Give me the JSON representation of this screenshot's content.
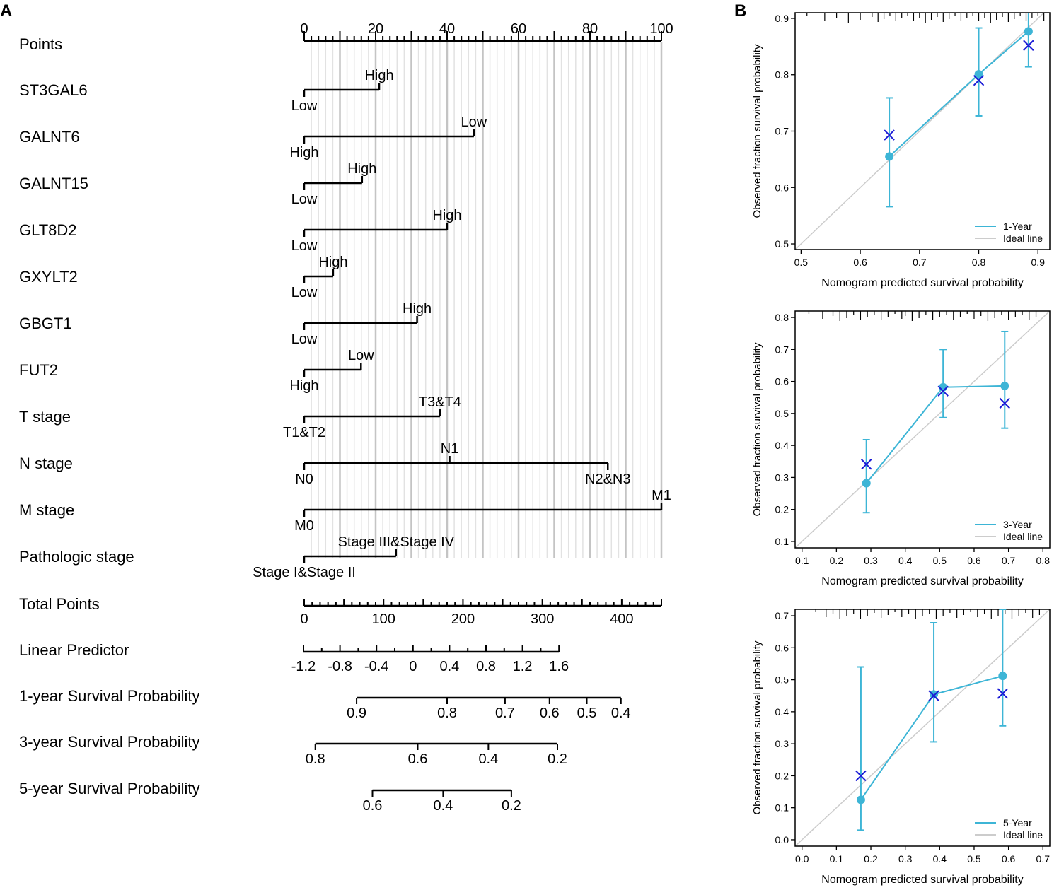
{
  "colors": {
    "axis": "#000000",
    "grid_major": "#c4c4c4",
    "grid_minor": "#e2e2e2",
    "series": "#3db5d6",
    "cross": "#1b1bd6",
    "ideal": "#cccccc"
  },
  "chart_data": [
    {
      "panel": "A",
      "type": "nomogram",
      "points_scale": {
        "label": "Points",
        "min": 0,
        "max": 100,
        "ticks": [
          0,
          20,
          40,
          60,
          80,
          100
        ]
      },
      "variables": [
        {
          "name": "ST3GAL6",
          "levels": [
            {
              "label": "Low",
              "points": 0
            },
            {
              "label": "High",
              "points": 21
            }
          ],
          "label_above": "High",
          "label_below": "Low"
        },
        {
          "name": "GALNT6",
          "levels": [
            {
              "label": "High",
              "points": 0
            },
            {
              "label": "Low",
              "points": 47.5
            }
          ],
          "label_above": "Low",
          "label_below": "High"
        },
        {
          "name": "GALNT15",
          "levels": [
            {
              "label": "Low",
              "points": 0
            },
            {
              "label": "High",
              "points": 16.2
            }
          ],
          "label_above": "High",
          "label_below": "Low"
        },
        {
          "name": "GLT8D2",
          "levels": [
            {
              "label": "Low",
              "points": 0
            },
            {
              "label": "High",
              "points": 40
            }
          ],
          "label_above": "High",
          "label_below": "Low"
        },
        {
          "name": "GXYLT2",
          "levels": [
            {
              "label": "Low",
              "points": 0
            },
            {
              "label": "High",
              "points": 8.1
            }
          ],
          "label_above": "High",
          "label_below": "Low"
        },
        {
          "name": "GBGT1",
          "levels": [
            {
              "label": "Low",
              "points": 0
            },
            {
              "label": "High",
              "points": 31.6
            }
          ],
          "label_above": "High",
          "label_below": "Low"
        },
        {
          "name": "FUT2",
          "levels": [
            {
              "label": "High",
              "points": 0
            },
            {
              "label": "Low",
              "points": 15.9
            }
          ],
          "label_above": "Low",
          "label_below": "High"
        },
        {
          "name": "T stage",
          "levels": [
            {
              "label": "T1&T2",
              "points": 0
            },
            {
              "label": "T3&T4",
              "points": 38
            }
          ],
          "label_above": "T3&T4",
          "label_below": "T1&T2"
        },
        {
          "name": "N stage",
          "levels": [
            {
              "label": "N0",
              "points": 0
            },
            {
              "label": "N1",
              "points": 40.7
            },
            {
              "label": "N2&N3",
              "points": 85
            }
          ],
          "label_above": "N1",
          "label_below": "N0",
          "label_below_end": "N2&N3"
        },
        {
          "name": "M stage",
          "levels": [
            {
              "label": "M0",
              "points": 0
            },
            {
              "label": "M1",
              "points": 100
            }
          ],
          "label_above": "M1",
          "label_below": "M0"
        },
        {
          "name": "Pathologic stage",
          "levels": [
            {
              "label": "Stage I&Stage II",
              "points": 0
            },
            {
              "label": "Stage III&Stage IV",
              "points": 25.7
            }
          ],
          "label_above": "Stage III&Stage IV",
          "label_below": "Stage I&Stage II"
        }
      ],
      "total_points": {
        "label": "Total Points",
        "min": 0,
        "max": 450,
        "ticks": [
          0,
          100,
          200,
          300,
          400
        ]
      },
      "linear_predictor": {
        "label": "Linear Predictor",
        "tick_values": [
          -1.2,
          -0.8,
          -0.4,
          0,
          0.4,
          0.8,
          1.2,
          1.6
        ],
        "tick_labels": [
          "-1.2",
          "-0.8",
          "-0.4",
          "0",
          "0.4",
          "0.8",
          "1.2",
          "1.6"
        ]
      },
      "survival": [
        {
          "label": "1-year Survival Probability",
          "tick_labels": [
            "0.9",
            "0.8",
            "0.7",
            "0.6",
            "0.5",
            "0.4"
          ],
          "tick_total_points": [
            66,
            180,
            253,
            309,
            356,
            399
          ]
        },
        {
          "label": "3-year Survival Probability",
          "tick_labels": [
            "0.8",
            "0.6",
            "0.4",
            "0.2"
          ],
          "tick_total_points": [
            14,
            143,
            232,
            319
          ]
        },
        {
          "label": "5-year Survival Probability",
          "tick_labels": [
            "0.6",
            "0.4",
            "0.2"
          ],
          "tick_total_points": [
            86,
            175,
            261
          ]
        }
      ]
    },
    {
      "panel": "B",
      "type": "line",
      "title": "1-Year",
      "xlabel": "Nomogram predicted survival probability",
      "ylabel": "Observed fraction survival probability",
      "xlim": [
        0.49,
        0.92
      ],
      "ylim": [
        0.49,
        0.91
      ],
      "xticks": [
        "0.5",
        "0.6",
        "0.7",
        "0.8",
        "0.9"
      ],
      "yticks": [
        "0.5",
        "0.6",
        "0.7",
        "0.8",
        "0.9"
      ],
      "legend": {
        "position": "bottom-right",
        "series_label": "1-Year",
        "ideal_label": "Ideal line"
      },
      "points": [
        {
          "x": 0.649,
          "y": 0.655,
          "lo": 0.566,
          "hi": 0.759,
          "cross": 0.693
        },
        {
          "x": 0.8,
          "y": 0.801,
          "lo": 0.727,
          "hi": 0.883,
          "cross": 0.79
        },
        {
          "x": 0.884,
          "y": 0.877,
          "lo": 0.814,
          "hi": 0.915,
          "cross": 0.852
        }
      ],
      "rug": [
        0.51,
        0.54,
        0.56,
        0.58,
        0.6,
        0.62,
        0.63,
        0.64,
        0.65,
        0.66,
        0.67,
        0.68,
        0.69,
        0.7,
        0.71,
        0.72,
        0.73,
        0.74,
        0.75,
        0.76,
        0.77,
        0.78,
        0.79,
        0.8,
        0.81,
        0.82,
        0.83,
        0.84,
        0.85,
        0.86,
        0.87,
        0.88,
        0.89,
        0.9,
        0.91
      ]
    },
    {
      "panel": "B",
      "type": "line",
      "title": "3-Year",
      "xlabel": "Nomogram predicted survival probability",
      "ylabel": "Observed fraction survival probability",
      "xlim": [
        0.08,
        0.82
      ],
      "ylim": [
        0.08,
        0.82
      ],
      "xticks": [
        "0.1",
        "0.2",
        "0.3",
        "0.4",
        "0.5",
        "0.6",
        "0.7",
        "0.8"
      ],
      "yticks": [
        "0.1",
        "0.2",
        "0.3",
        "0.4",
        "0.5",
        "0.6",
        "0.7",
        "0.8"
      ],
      "legend": {
        "position": "bottom-right",
        "series_label": "3-Year",
        "ideal_label": "Ideal line"
      },
      "points": [
        {
          "x": 0.287,
          "y": 0.282,
          "lo": 0.19,
          "hi": 0.418,
          "cross": 0.341
        },
        {
          "x": 0.51,
          "y": 0.582,
          "lo": 0.487,
          "hi": 0.7,
          "cross": 0.57
        },
        {
          "x": 0.689,
          "y": 0.586,
          "lo": 0.454,
          "hi": 0.756,
          "cross": 0.532
        }
      ],
      "rug": [
        0.12,
        0.16,
        0.19,
        0.21,
        0.23,
        0.25,
        0.27,
        0.29,
        0.31,
        0.33,
        0.35,
        0.37,
        0.39,
        0.4,
        0.42,
        0.44,
        0.46,
        0.48,
        0.5,
        0.52,
        0.54,
        0.56,
        0.58,
        0.6,
        0.62,
        0.64,
        0.66,
        0.68,
        0.7,
        0.72,
        0.74,
        0.76,
        0.78
      ]
    },
    {
      "panel": "B",
      "type": "line",
      "title": "5-Year",
      "xlabel": "Nomogram predicted survival probability",
      "ylabel": "Observed fraction survival probability",
      "xlim": [
        -0.02,
        0.72
      ],
      "ylim": [
        -0.02,
        0.72
      ],
      "xticks": [
        "0.0",
        "0.1",
        "0.2",
        "0.3",
        "0.4",
        "0.5",
        "0.6",
        "0.7"
      ],
      "yticks": [
        "0.0",
        "0.1",
        "0.2",
        "0.3",
        "0.4",
        "0.5",
        "0.6",
        "0.7"
      ],
      "legend": {
        "position": "bottom-right",
        "series_label": "5-Year",
        "ideal_label": "Ideal line"
      },
      "points": [
        {
          "x": 0.171,
          "y": 0.125,
          "lo": 0.03,
          "hi": 0.54,
          "cross": 0.2
        },
        {
          "x": 0.383,
          "y": 0.454,
          "lo": 0.306,
          "hi": 0.678,
          "cross": 0.45
        },
        {
          "x": 0.583,
          "y": 0.512,
          "lo": 0.356,
          "hi": 0.72,
          "cross": 0.457
        }
      ],
      "rug": [
        0.04,
        0.07,
        0.09,
        0.11,
        0.13,
        0.15,
        0.17,
        0.19,
        0.21,
        0.23,
        0.25,
        0.27,
        0.29,
        0.31,
        0.33,
        0.35,
        0.37,
        0.39,
        0.41,
        0.43,
        0.45,
        0.47,
        0.49,
        0.51,
        0.53,
        0.55,
        0.57,
        0.59,
        0.61,
        0.63,
        0.65,
        0.67,
        0.69
      ]
    }
  ],
  "labels": {
    "panel_a": "A",
    "panel_b": "B"
  }
}
